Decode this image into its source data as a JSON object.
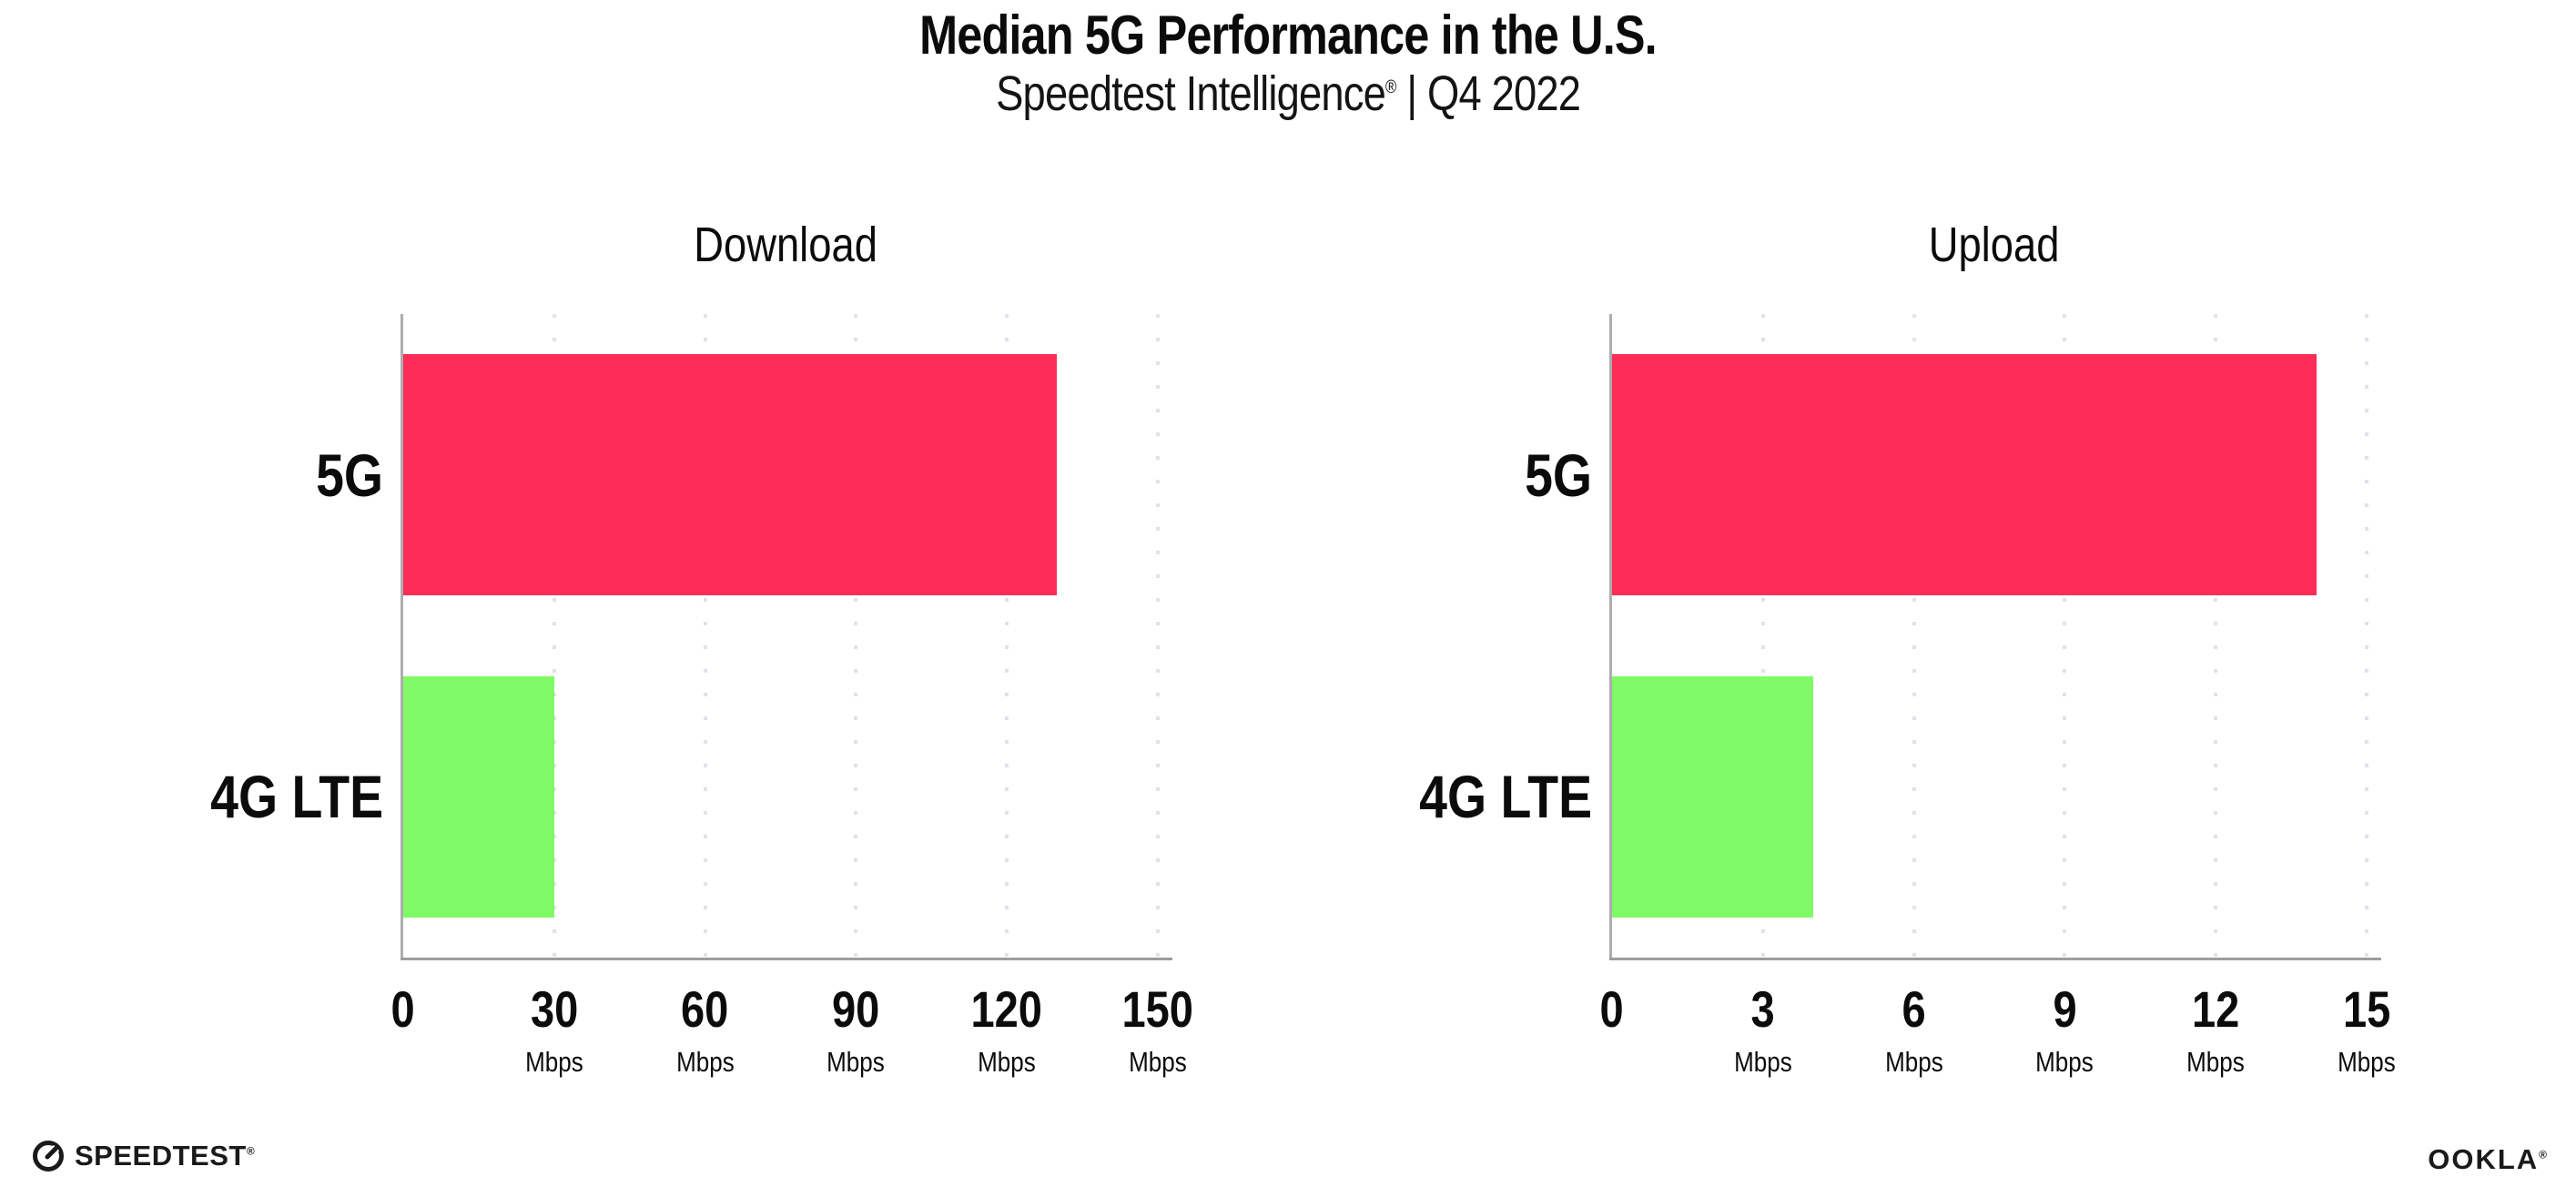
{
  "header": {
    "title": "Median 5G Performance in the U.S.",
    "subtitle_brand": "Speedtest Intelligence",
    "subtitle_reg": "®",
    "subtitle_rest": " | Q4 2022"
  },
  "chart_data": [
    {
      "type": "bar",
      "orientation": "horizontal",
      "title": "Download",
      "categories": [
        "5G",
        "4G LTE"
      ],
      "values": [
        130,
        30
      ],
      "unit": "Mbps",
      "xlabel": "Mbps",
      "xticks": [
        0,
        30,
        60,
        90,
        120,
        150
      ],
      "xlim": [
        0,
        152
      ],
      "bar_colors": [
        "#fd2d58",
        "#80fa66"
      ],
      "grid": "vertical-dotted",
      "legend": "none"
    },
    {
      "type": "bar",
      "orientation": "horizontal",
      "title": "Upload",
      "categories": [
        "5G",
        "4G LTE"
      ],
      "values": [
        14,
        4
      ],
      "unit": "Mbps",
      "xlabel": "Mbps",
      "xticks": [
        0,
        3,
        6,
        9,
        12,
        15
      ],
      "xlim": [
        0,
        15.2
      ],
      "bar_colors": [
        "#fd2d58",
        "#80fa66"
      ],
      "grid": "vertical-dotted",
      "legend": "none"
    }
  ],
  "colors": {
    "bar_5g": "#fd2d58",
    "bar_4g_lte": "#80fa66",
    "gridline": "#e0e1ee",
    "axis": "#9d9d9d",
    "text": "#0b0b0b",
    "background": "#ffffff"
  },
  "footer": {
    "speedtest_label": "SPEEDTEST",
    "speedtest_mark": "®",
    "ookla_label": "OOKLA",
    "ookla_mark": "®"
  }
}
